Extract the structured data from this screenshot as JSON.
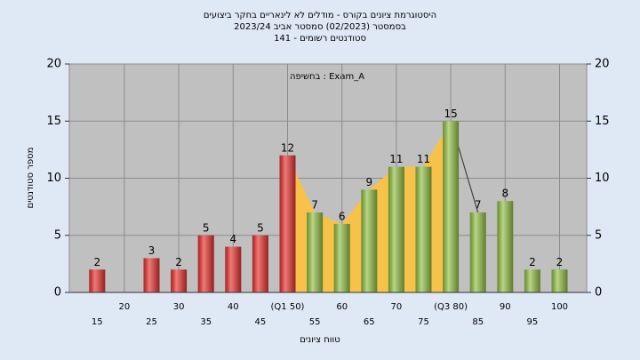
{
  "chart_data": {
    "type": "bar",
    "title": "היסטוגרמת ציונים בקורס - מודלים לא לינאריים בחקר ביצועים",
    "subtitle": "בסמסטר  (02/2023)  סמסטר אביב 2023/24",
    "subtitle2": "סטודנטים רשומים - 141",
    "annotation": "בחשיפה : Exam_A",
    "xlabel": "טווח ציונים",
    "ylabel": "מספר סטודנטים",
    "categories": [
      "15",
      "20",
      "25",
      "30",
      "35",
      "40",
      "45",
      "(Q1 50)",
      "55",
      "60",
      "65",
      "70",
      "75",
      "(Q3 80)",
      "85",
      "90",
      "95",
      "100"
    ],
    "values": [
      2,
      0,
      3,
      2,
      5,
      4,
      5,
      12,
      7,
      6,
      9,
      11,
      11,
      15,
      7,
      8,
      2,
      2
    ],
    "colors": [
      "#e8322e",
      "#e8322e",
      "#e8322e",
      "#e8322e",
      "#e8322e",
      "#e8322e",
      "#e8322e",
      "#e8322e",
      "#92c043",
      "#92c043",
      "#92c043",
      "#92c043",
      "#92c043",
      "#92c043",
      "#92c043",
      "#92c043",
      "#92c043",
      "#92c043"
    ],
    "area_color": "#f7c24a",
    "ylim": [
      0,
      20
    ],
    "yticks": [
      0,
      5,
      10,
      15,
      20
    ],
    "y2lim": [
      0,
      20
    ],
    "y2ticks": [
      0,
      5,
      10,
      15,
      20
    ],
    "grid": true
  }
}
